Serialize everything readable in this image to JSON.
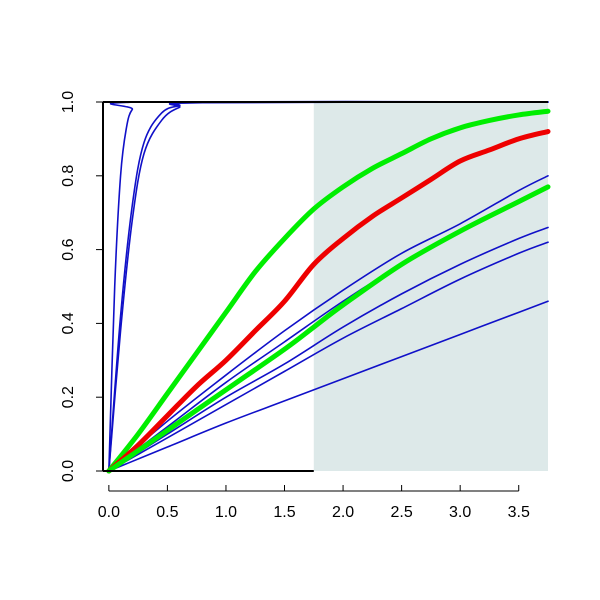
{
  "chart_data": {
    "type": "line",
    "title": "",
    "xlabel": "",
    "ylabel": "",
    "xlim": [
      -0.05,
      3.75
    ],
    "ylim": [
      0,
      1
    ],
    "x_ticks": [
      0,
      0.5,
      1,
      1.5,
      2,
      2.5,
      3,
      3.5
    ],
    "x_tick_labels": [
      "0.0",
      "0.5",
      "1.0",
      "1.5",
      "2.0",
      "2.5",
      "3.0",
      "3.5"
    ],
    "y_ticks": [
      0,
      0.2,
      0.4,
      0.6,
      0.8,
      1
    ],
    "y_tick_labels": [
      "0.0",
      "0.2",
      "0.4",
      "0.6",
      "0.8",
      "1.0"
    ],
    "grid": false,
    "shaded_region": {
      "x_from": 1.75,
      "x_to": 3.75,
      "color": "#dde9e9"
    },
    "series": [
      {
        "color": "#1010c8",
        "points": [
          [
            0,
            0
          ],
          [
            0.05,
            0.5
          ],
          [
            0.1,
            0.8
          ],
          [
            0.15,
            0.93
          ],
          [
            0.2,
            0.98
          ],
          [
            0.3,
            1
          ],
          [
            3.75,
            1
          ]
        ]
      },
      {
        "color": "#1010c8",
        "points": [
          [
            0,
            0
          ],
          [
            0.1,
            0.42
          ],
          [
            0.2,
            0.72
          ],
          [
            0.3,
            0.89
          ],
          [
            0.45,
            0.97
          ],
          [
            0.6,
            0.99
          ],
          [
            0.8,
            1
          ],
          [
            3.75,
            1
          ]
        ]
      },
      {
        "color": "#1010c8",
        "points": [
          [
            0,
            0
          ],
          [
            0.1,
            0.38
          ],
          [
            0.2,
            0.68
          ],
          [
            0.3,
            0.86
          ],
          [
            0.45,
            0.95
          ],
          [
            0.6,
            0.985
          ],
          [
            0.8,
            0.998
          ],
          [
            3.75,
            1
          ]
        ]
      },
      {
        "color": "#1010c8",
        "points": [
          [
            0,
            0
          ],
          [
            0.5,
            0.135
          ],
          [
            1,
            0.26
          ],
          [
            1.5,
            0.38
          ],
          [
            2,
            0.49
          ],
          [
            2.5,
            0.59
          ],
          [
            3,
            0.67
          ],
          [
            3.5,
            0.76
          ],
          [
            3.75,
            0.8
          ]
        ]
      },
      {
        "color": "#1010c8",
        "points": [
          [
            0,
            0
          ],
          [
            0.5,
            0.12
          ],
          [
            1,
            0.24
          ],
          [
            1.5,
            0.35
          ],
          [
            2,
            0.46
          ],
          [
            2.5,
            0.56
          ],
          [
            3,
            0.65
          ],
          [
            3.5,
            0.73
          ],
          [
            3.75,
            0.77
          ]
        ]
      },
      {
        "color": "#1010c8",
        "points": [
          [
            0,
            0
          ],
          [
            0.5,
            0.1
          ],
          [
            1,
            0.2
          ],
          [
            1.5,
            0.29
          ],
          [
            2,
            0.39
          ],
          [
            2.5,
            0.48
          ],
          [
            3,
            0.56
          ],
          [
            3.5,
            0.63
          ],
          [
            3.75,
            0.66
          ]
        ]
      },
      {
        "color": "#1010c8",
        "points": [
          [
            0,
            0
          ],
          [
            0.5,
            0.09
          ],
          [
            1,
            0.18
          ],
          [
            1.5,
            0.27
          ],
          [
            2,
            0.36
          ],
          [
            2.5,
            0.44
          ],
          [
            3,
            0.52
          ],
          [
            3.5,
            0.59
          ],
          [
            3.75,
            0.62
          ]
        ]
      },
      {
        "color": "#1010c8",
        "points": [
          [
            0,
            0
          ],
          [
            0.5,
            0.065
          ],
          [
            1,
            0.13
          ],
          [
            1.5,
            0.19
          ],
          [
            2,
            0.25
          ],
          [
            2.5,
            0.31
          ],
          [
            3,
            0.37
          ],
          [
            3.5,
            0.43
          ],
          [
            3.75,
            0.46
          ]
        ]
      },
      {
        "color": "#00ee00",
        "thick": true,
        "points": [
          [
            0,
            0
          ],
          [
            0.25,
            0.1
          ],
          [
            0.5,
            0.21
          ],
          [
            0.75,
            0.32
          ],
          [
            1,
            0.43
          ],
          [
            1.25,
            0.54
          ],
          [
            1.5,
            0.63
          ],
          [
            1.75,
            0.71
          ],
          [
            2,
            0.77
          ],
          [
            2.25,
            0.82
          ],
          [
            2.5,
            0.86
          ],
          [
            2.75,
            0.9
          ],
          [
            3,
            0.93
          ],
          [
            3.25,
            0.95
          ],
          [
            3.5,
            0.965
          ],
          [
            3.75,
            0.975
          ]
        ]
      },
      {
        "color": "#ee0000",
        "thick": true,
        "points": [
          [
            0,
            0
          ],
          [
            0.25,
            0.07
          ],
          [
            0.5,
            0.15
          ],
          [
            0.75,
            0.23
          ],
          [
            1,
            0.3
          ],
          [
            1.25,
            0.38
          ],
          [
            1.5,
            0.46
          ],
          [
            1.75,
            0.56
          ],
          [
            2,
            0.63
          ],
          [
            2.25,
            0.69
          ],
          [
            2.5,
            0.74
          ],
          [
            2.75,
            0.79
          ],
          [
            3,
            0.84
          ],
          [
            3.25,
            0.87
          ],
          [
            3.5,
            0.9
          ],
          [
            3.75,
            0.92
          ]
        ]
      },
      {
        "color": "#00ee00",
        "thick": true,
        "points": [
          [
            0,
            0
          ],
          [
            0.5,
            0.11
          ],
          [
            1,
            0.22
          ],
          [
            1.5,
            0.33
          ],
          [
            1.75,
            0.39
          ],
          [
            2,
            0.45
          ],
          [
            2.5,
            0.56
          ],
          [
            3,
            0.65
          ],
          [
            3.5,
            0.73
          ],
          [
            3.75,
            0.77
          ]
        ]
      }
    ]
  }
}
